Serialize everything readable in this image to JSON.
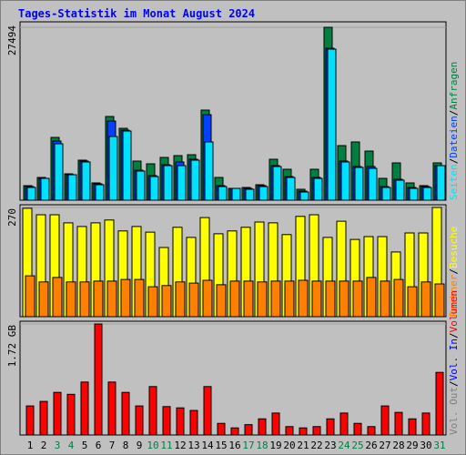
{
  "title": "Tages-Statistik im Monat August 2024",
  "chart_data": [
    {
      "type": "bar",
      "ylim": [
        0,
        27494
      ],
      "yticks": [
        27494
      ],
      "series": [
        {
          "name": "Anfragen",
          "color": "#008040",
          "values": [
            2315,
            3618,
            9985,
            4196,
            6367,
            2749,
            13313,
            11432,
            6222,
            5788,
            6801,
            7090,
            7235,
            14326,
            3618,
            1881,
            2026,
            2460,
            6512,
            4920,
            1736,
            4920,
            27494,
            8682,
            9261,
            7814,
            3473,
            5933,
            2749,
            2315,
            5933
          ]
        },
        {
          "name": "Dateien",
          "color": "#0040ff",
          "values": [
            2170,
            3473,
            9406,
            4052,
            6222,
            2604,
            12589,
            11142,
            4776,
            3907,
            5644,
            6078,
            6512,
            13602,
            2315,
            1881,
            1881,
            2315,
            5499,
            3762,
            1447,
            3618,
            24166,
            6222,
            5354,
            5354,
            2170,
            3328,
            2026,
            2170,
            5499
          ]
        },
        {
          "name": "Seiten",
          "color": "#00e0ff",
          "values": [
            2026,
            3473,
            8972,
            4052,
            6078,
            2460,
            10129,
            10998,
            4631,
            3762,
            5499,
            5499,
            6367,
            9261,
            2171,
            1881,
            1736,
            2170,
            5354,
            3618,
            1302,
            3473,
            24021,
            6078,
            5209,
            5064,
            2026,
            3183,
            1881,
            2026,
            5499
          ]
        }
      ]
    },
    {
      "type": "bar",
      "ylim": [
        0,
        270
      ],
      "yticks": [
        270
      ],
      "series": [
        {
          "name": "Besuche",
          "color": "#ffff00",
          "values": [
            268,
            252,
            252,
            232,
            223,
            232,
            239,
            212,
            223,
            209,
            171,
            221,
            196,
            245,
            205,
            212,
            221,
            234,
            232,
            203,
            248,
            252,
            196,
            236,
            191,
            198,
            198,
            160,
            207,
            207,
            270
          ]
        },
        {
          "name": "Rechner",
          "color": "#ff8000",
          "values": [
            101,
            86,
            97,
            86,
            86,
            88,
            88,
            92,
            92,
            74,
            77,
            86,
            83,
            90,
            79,
            88,
            88,
            86,
            88,
            88,
            90,
            88,
            88,
            88,
            88,
            97,
            88,
            92,
            74,
            86,
            81
          ]
        }
      ]
    },
    {
      "type": "bar",
      "ylim": [
        0,
        1.72
      ],
      "yticks": [
        {
          "value": 1.72,
          "label": "1.72 GB"
        }
      ],
      "categories": [
        "1",
        "2",
        "3",
        "4",
        "5",
        "6",
        "7",
        "8",
        "9",
        "10",
        "11",
        "12",
        "13",
        "14",
        "15",
        "16",
        "17",
        "18",
        "19",
        "20",
        "21",
        "22",
        "23",
        "24",
        "25",
        "26",
        "27",
        "28",
        "29",
        "30",
        "31"
      ],
      "category_colors": [
        "#000000",
        "#000000",
        "#008040",
        "#008040",
        "#000000",
        "#000000",
        "#000000",
        "#000000",
        "#000000",
        "#008040",
        "#008040",
        "#000000",
        "#000000",
        "#000000",
        "#000000",
        "#000000",
        "#008040",
        "#008040",
        "#000000",
        "#000000",
        "#000000",
        "#000000",
        "#000000",
        "#008040",
        "#008040",
        "#000000",
        "#000000",
        "#000000",
        "#000000",
        "#000000",
        "#008040"
      ],
      "series": [
        {
          "name": "Volumen",
          "color": "#ff0000",
          "values": [
            0.45,
            0.52,
            0.66,
            0.63,
            0.82,
            1.72,
            0.82,
            0.66,
            0.45,
            0.75,
            0.44,
            0.42,
            0.38,
            0.75,
            0.18,
            0.11,
            0.16,
            0.25,
            0.34,
            0.13,
            0.11,
            0.13,
            0.25,
            0.34,
            0.18,
            0.13,
            0.45,
            0.35,
            0.25,
            0.34,
            0.97
          ]
        },
        {
          "name": "Vol. In",
          "color": "#0000ff",
          "values": [
            null,
            null,
            null,
            null,
            null,
            null,
            null,
            null,
            null,
            null,
            null,
            null,
            null,
            null,
            null,
            null,
            null,
            null,
            null,
            null,
            null,
            null,
            null,
            null,
            null,
            null,
            null,
            null,
            null,
            null,
            null
          ]
        },
        {
          "name": "Vol. Out",
          "color": "#808080",
          "values": [
            null,
            null,
            null,
            null,
            null,
            null,
            null,
            null,
            null,
            null,
            null,
            null,
            null,
            null,
            null,
            null,
            null,
            null,
            null,
            null,
            null,
            null,
            null,
            null,
            null,
            null,
            null,
            null,
            null,
            null,
            null
          ]
        }
      ]
    }
  ]
}
